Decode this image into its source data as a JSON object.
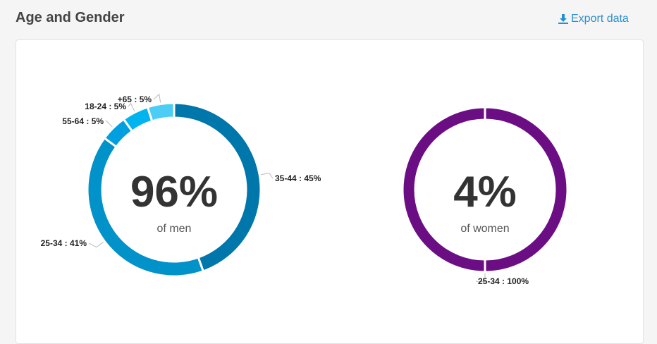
{
  "header": {
    "title": "Age and Gender",
    "export_label": "Export data",
    "export_icon": "download-icon"
  },
  "colors": {
    "accent_link": "#2a8fd1",
    "men_ring": [
      "#0077aa",
      "#0092c9",
      "#009fe0",
      "#00b4f0",
      "#4ccdf5"
    ],
    "women_ring": "#6b0e84"
  },
  "chart_data": [
    {
      "type": "pie",
      "variant": "donut",
      "center_value": "96%",
      "center_caption": "of men",
      "slices": [
        {
          "label": "35-44 : 45%",
          "value": 45
        },
        {
          "label": "25-34 : 41%",
          "value": 41
        },
        {
          "label": "55-64 : 5%",
          "value": 5
        },
        {
          "label": "18-24 : 5%",
          "value": 5
        },
        {
          "label": "+65 : 5%",
          "value": 5
        }
      ]
    },
    {
      "type": "pie",
      "variant": "donut",
      "center_value": "4%",
      "center_caption": "of women",
      "slices": [
        {
          "label": "25-34 : 100%",
          "value": 100
        }
      ]
    }
  ]
}
